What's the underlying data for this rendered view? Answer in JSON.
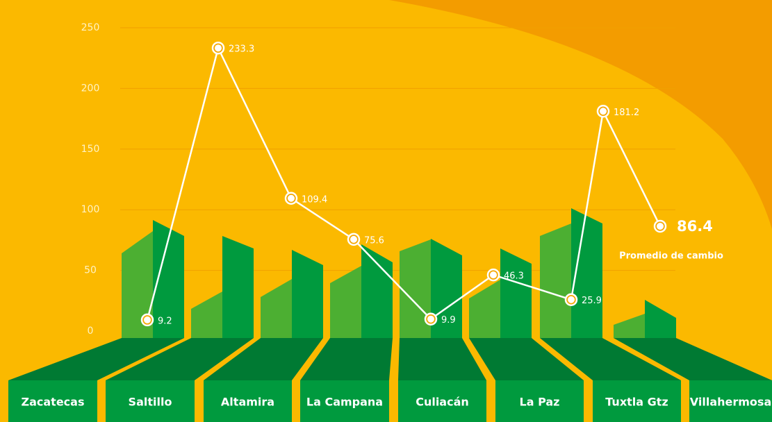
{
  "chart_data": {
    "type": "line",
    "categories": [
      "Zacatecas",
      "Saltillo",
      "Altamira",
      "La Campana",
      "Culiacán",
      "La Paz",
      "Tuxtla Gtz",
      "Villahermosa"
    ],
    "series": [
      {
        "color": "#ffffff",
        "values": [
          9.2,
          233.3,
          109.4,
          75.6,
          9.9,
          46.3,
          25.9,
          181.2
        ]
      }
    ],
    "average": {
      "value": 86.4,
      "label": "Promedio de cambio"
    },
    "ylim": [
      0,
      250
    ],
    "yticks": [
      0,
      50,
      100,
      150,
      200,
      250
    ],
    "grid": true
  }
}
